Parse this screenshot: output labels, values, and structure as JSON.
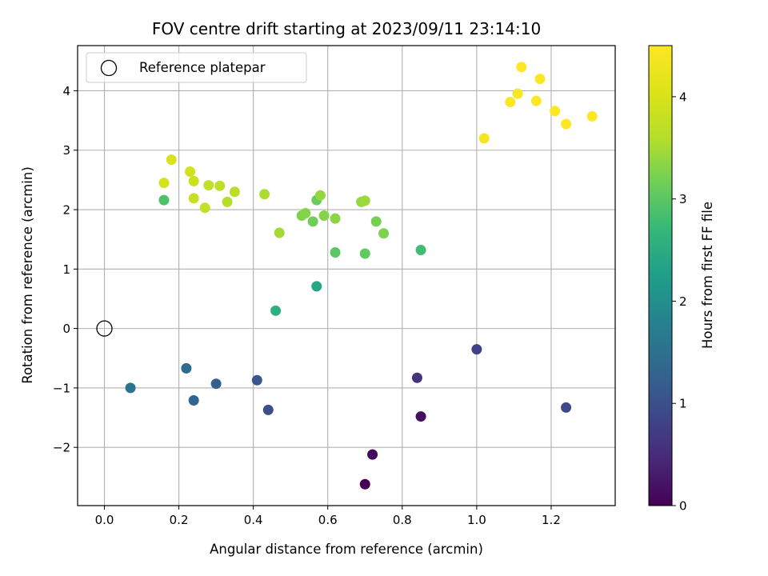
{
  "chart_data": {
    "type": "scatter",
    "title": "FOV centre drift starting at 2023/09/11 23:14:10",
    "xlabel": "Angular distance from reference (arcmin)",
    "ylabel": "Rotation from reference (arcmin)",
    "xlim": [
      -0.072,
      1.372
    ],
    "ylim": [
      -2.98,
      4.76
    ],
    "xticks": [
      0.0,
      0.2,
      0.4,
      0.6,
      0.8,
      1.0,
      1.2
    ],
    "xtick_labels": [
      "0.0",
      "0.2",
      "0.4",
      "0.6",
      "0.8",
      "1.0",
      "1.2"
    ],
    "yticks": [
      -2,
      -1,
      0,
      1,
      2,
      3,
      4
    ],
    "ytick_labels": [
      "−2",
      "−1",
      "0",
      "1",
      "2",
      "3",
      "4"
    ],
    "grid": true,
    "legend": {
      "placement": "upper-left",
      "entries": [
        {
          "label": "Reference platepar",
          "marker": "open-circle",
          "x": 0.0,
          "y": 0.0
        }
      ]
    },
    "colorbar": {
      "label": "Hours from first FF file",
      "colormap": "viridis",
      "range": [
        0,
        4.5
      ],
      "ticks": [
        0,
        1,
        2,
        3,
        4
      ],
      "tick_labels": [
        "0",
        "1",
        "2",
        "3",
        "4"
      ]
    },
    "points": [
      {
        "x": 0.7,
        "y": -2.62,
        "c": 0.0
      },
      {
        "x": 0.72,
        "y": -2.12,
        "c": 0.1
      },
      {
        "x": 0.85,
        "y": -1.48,
        "c": 0.15
      },
      {
        "x": 0.84,
        "y": -0.83,
        "c": 0.6
      },
      {
        "x": 1.0,
        "y": -0.35,
        "c": 0.8
      },
      {
        "x": 1.24,
        "y": -1.33,
        "c": 0.9
      },
      {
        "x": 0.44,
        "y": -1.37,
        "c": 1.0
      },
      {
        "x": 0.41,
        "y": -0.87,
        "c": 1.1
      },
      {
        "x": 0.3,
        "y": -0.93,
        "c": 1.2
      },
      {
        "x": 0.24,
        "y": -1.21,
        "c": 1.3
      },
      {
        "x": 0.22,
        "y": -0.67,
        "c": 1.4
      },
      {
        "x": 0.07,
        "y": -1.0,
        "c": 1.6
      },
      {
        "x": 0.57,
        "y": 0.71,
        "c": 2.4
      },
      {
        "x": 0.46,
        "y": 0.3,
        "c": 2.55
      },
      {
        "x": 0.85,
        "y": 1.32,
        "c": 2.8
      },
      {
        "x": 0.16,
        "y": 2.16,
        "c": 2.9
      },
      {
        "x": 0.62,
        "y": 1.28,
        "c": 3.0
      },
      {
        "x": 0.7,
        "y": 1.26,
        "c": 3.05
      },
      {
        "x": 0.57,
        "y": 2.16,
        "c": 3.1
      },
      {
        "x": 0.56,
        "y": 1.8,
        "c": 3.15
      },
      {
        "x": 0.73,
        "y": 1.8,
        "c": 3.2
      },
      {
        "x": 0.75,
        "y": 1.6,
        "c": 3.25
      },
      {
        "x": 0.53,
        "y": 1.9,
        "c": 3.25
      },
      {
        "x": 0.54,
        "y": 1.94,
        "c": 3.3
      },
      {
        "x": 0.59,
        "y": 1.9,
        "c": 3.3
      },
      {
        "x": 0.62,
        "y": 1.85,
        "c": 3.35
      },
      {
        "x": 0.58,
        "y": 2.24,
        "c": 3.4
      },
      {
        "x": 0.69,
        "y": 2.13,
        "c": 3.4
      },
      {
        "x": 0.7,
        "y": 2.15,
        "c": 3.45
      },
      {
        "x": 0.47,
        "y": 1.61,
        "c": 3.5
      },
      {
        "x": 0.43,
        "y": 2.26,
        "c": 3.55
      },
      {
        "x": 0.33,
        "y": 2.13,
        "c": 3.6
      },
      {
        "x": 0.35,
        "y": 2.3,
        "c": 3.65
      },
      {
        "x": 0.31,
        "y": 2.4,
        "c": 3.7
      },
      {
        "x": 0.28,
        "y": 2.41,
        "c": 3.75
      },
      {
        "x": 0.27,
        "y": 2.03,
        "c": 3.75
      },
      {
        "x": 0.24,
        "y": 2.19,
        "c": 3.8
      },
      {
        "x": 0.24,
        "y": 2.48,
        "c": 3.85
      },
      {
        "x": 0.23,
        "y": 2.64,
        "c": 3.9
      },
      {
        "x": 0.16,
        "y": 2.45,
        "c": 3.95
      },
      {
        "x": 0.18,
        "y": 2.84,
        "c": 4.0
      },
      {
        "x": 1.02,
        "y": 3.2,
        "c": 4.4
      },
      {
        "x": 1.09,
        "y": 3.81,
        "c": 4.45
      },
      {
        "x": 1.11,
        "y": 3.95,
        "c": 4.45
      },
      {
        "x": 1.12,
        "y": 4.4,
        "c": 4.5
      },
      {
        "x": 1.17,
        "y": 4.2,
        "c": 4.5
      },
      {
        "x": 1.16,
        "y": 3.83,
        "c": 4.5
      },
      {
        "x": 1.21,
        "y": 3.66,
        "c": 4.5
      },
      {
        "x": 1.24,
        "y": 3.44,
        "c": 4.5
      },
      {
        "x": 1.31,
        "y": 3.57,
        "c": 4.5
      }
    ]
  }
}
